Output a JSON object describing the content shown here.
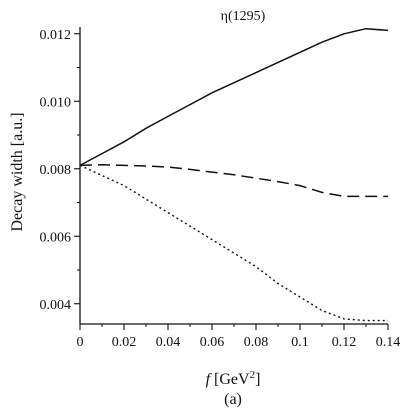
{
  "chart_data": {
    "type": "line",
    "title": "η(1295)",
    "caption": "(a)",
    "xlabel": {
      "italic": "f",
      "unit_open": " [GeV",
      "sup": "2",
      "unit_close": "]"
    },
    "ylabel": "Decay width [a.u.]",
    "xlim": [
      0,
      0.14
    ],
    "ylim": [
      0.0034,
      0.0122
    ],
    "xticks": [
      0,
      0.02,
      0.04,
      0.06,
      0.08,
      0.1,
      0.12,
      0.14
    ],
    "xtick_labels": [
      "0",
      "0.02",
      "0.04",
      "0.06",
      "0.08",
      "0.1",
      "0.12",
      "0.14"
    ],
    "yticks": [
      0.004,
      0.006,
      0.008,
      0.01,
      0.012
    ],
    "ytick_labels": [
      "0.004",
      "0.006",
      "0.008",
      "0.010",
      "0.012"
    ],
    "grid": false,
    "legend": "none",
    "series": [
      {
        "style": "solid",
        "x": [
          0,
          0.01,
          0.02,
          0.03,
          0.04,
          0.05,
          0.06,
          0.07,
          0.08,
          0.09,
          0.1,
          0.11,
          0.12,
          0.13,
          0.14
        ],
        "y": [
          0.0081,
          0.00845,
          0.0088,
          0.0092,
          0.00955,
          0.0099,
          0.01025,
          0.01055,
          0.01085,
          0.01115,
          0.01145,
          0.01175,
          0.012,
          0.01215,
          0.0121
        ]
      },
      {
        "style": "dashed",
        "x": [
          0,
          0.01,
          0.02,
          0.03,
          0.04,
          0.05,
          0.06,
          0.07,
          0.08,
          0.09,
          0.1,
          0.11,
          0.12,
          0.13,
          0.14
        ],
        "y": [
          0.0081,
          0.00812,
          0.0081,
          0.00808,
          0.00805,
          0.00798,
          0.0079,
          0.00782,
          0.00772,
          0.00762,
          0.0075,
          0.0073,
          0.00718,
          0.00718,
          0.00718
        ]
      },
      {
        "style": "dotted",
        "x": [
          0,
          0.01,
          0.02,
          0.03,
          0.04,
          0.05,
          0.06,
          0.07,
          0.08,
          0.09,
          0.1,
          0.11,
          0.12,
          0.13,
          0.14
        ],
        "y": [
          0.0081,
          0.0078,
          0.0075,
          0.0071,
          0.0067,
          0.0063,
          0.0059,
          0.0055,
          0.0051,
          0.0046,
          0.0042,
          0.0038,
          0.00355,
          0.0035,
          0.0035
        ]
      }
    ]
  }
}
